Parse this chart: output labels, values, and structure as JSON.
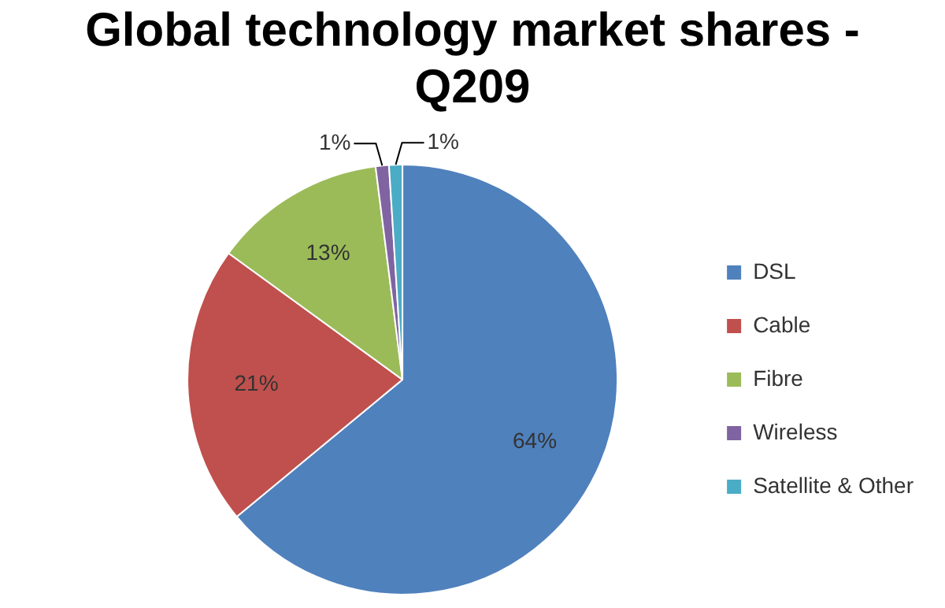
{
  "chart_data": {
    "type": "pie",
    "title": "Global technology market shares - Q209",
    "categories": [
      "DSL",
      "Cable",
      "Fibre",
      "Wireless",
      "Satellite & Other"
    ],
    "values": [
      64,
      21,
      13,
      1,
      1
    ],
    "colors": [
      "#4f81bd",
      "#c0504d",
      "#9bbb59",
      "#8064a2",
      "#4bacc6"
    ],
    "value_labels": [
      "64%",
      "21%",
      "13%",
      "1%",
      "1%"
    ],
    "legend": "right"
  }
}
